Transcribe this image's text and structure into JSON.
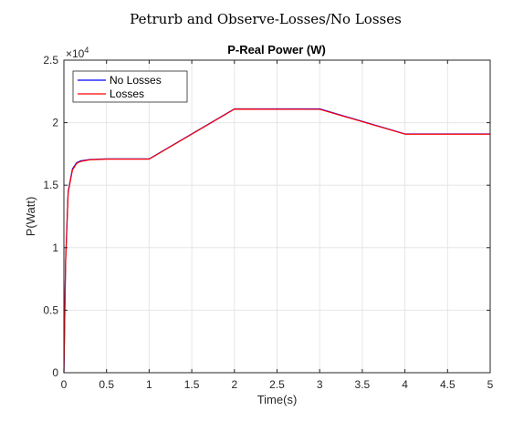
{
  "figure": {
    "suptitle": "Petrurb and Observe-Losses/No Losses"
  },
  "chart_data": {
    "type": "line",
    "title": "P-Real Power (W)",
    "xlabel": "Time(s)",
    "ylabel": "P(Watt)",
    "xlim": [
      0,
      5
    ],
    "ylim": [
      0,
      25000
    ],
    "y_exponent_label": "×10",
    "y_exponent_power": "4",
    "xticks": [
      0,
      0.5,
      1,
      1.5,
      2,
      2.5,
      3,
      3.5,
      4,
      4.5,
      5
    ],
    "xtick_labels": [
      "0",
      "0.5",
      "1",
      "1.5",
      "2",
      "2.5",
      "3",
      "3.5",
      "4",
      "4.5",
      "5"
    ],
    "yticks": [
      0,
      5000,
      10000,
      15000,
      20000,
      25000
    ],
    "ytick_labels": [
      "0",
      "0.5",
      "1",
      "1.5",
      "2",
      "2.5"
    ],
    "grid": true,
    "legend_position": "top-left",
    "series": [
      {
        "name": "No Losses",
        "color": "#0000ff",
        "x": [
          0,
          0.02,
          0.05,
          0.1,
          0.15,
          0.2,
          0.3,
          0.5,
          1.0,
          2.0,
          3.0,
          4.0,
          5.0
        ],
        "y": [
          0,
          9000,
          14500,
          16300,
          16800,
          16950,
          17050,
          17100,
          17100,
          21100,
          21100,
          19100,
          19100
        ]
      },
      {
        "name": "Losses",
        "color": "#ff0000",
        "x": [
          0,
          0.02,
          0.05,
          0.1,
          0.15,
          0.2,
          0.3,
          0.5,
          1.0,
          2.0,
          3.0,
          4.0,
          5.0
        ],
        "y": [
          0,
          8800,
          14400,
          16200,
          16750,
          16900,
          17030,
          17080,
          17080,
          21080,
          21070,
          19080,
          19080
        ]
      }
    ]
  }
}
